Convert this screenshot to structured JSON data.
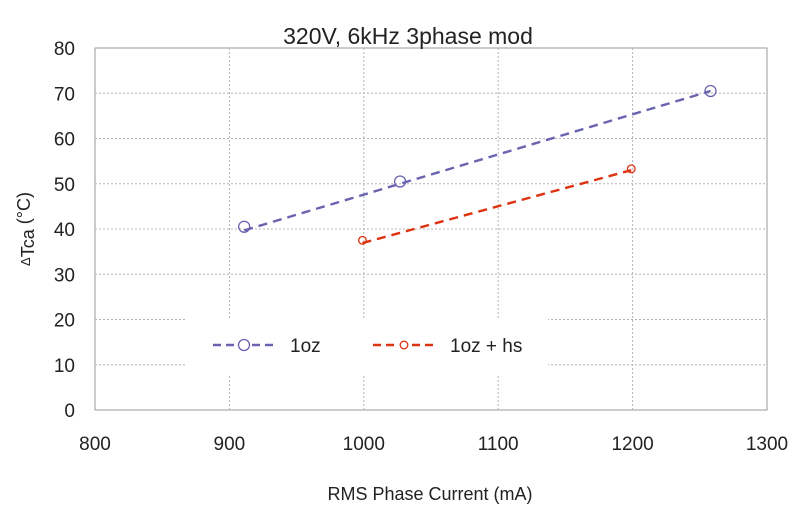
{
  "chart_data": {
    "type": "line",
    "title": "320V, 6kHz 3phase mod",
    "xlabel": "RMS Phase Current (mA)",
    "ylabel_delta": "Δ",
    "ylabel_sub": "Tca",
    "ylabel_unit": " (°C)",
    "xlim": [
      800,
      1300
    ],
    "ylim": [
      0,
      80
    ],
    "x_ticks": [
      800,
      900,
      1000,
      1100,
      1200,
      1300
    ],
    "y_ticks": [
      0,
      10,
      20,
      30,
      40,
      50,
      60,
      70,
      80
    ],
    "grid": true,
    "legend_position": "lower-center",
    "series": [
      {
        "name": "1oz",
        "color": "#6a63b0",
        "marker": "open-circle-large",
        "points": [
          [
            911,
            40.5
          ],
          [
            1027,
            50.5
          ],
          [
            1258,
            70.5
          ]
        ],
        "trendline": [
          [
            911,
            39.7
          ],
          [
            1258,
            70.5
          ]
        ]
      },
      {
        "name": "1oz + hs",
        "color": "#dd3311",
        "marker": "open-circle-small",
        "points": [
          [
            999,
            37.5
          ],
          [
            1199,
            53.3
          ]
        ],
        "trendline": [
          [
            999,
            36.9
          ],
          [
            1199,
            53.0
          ]
        ]
      }
    ]
  }
}
